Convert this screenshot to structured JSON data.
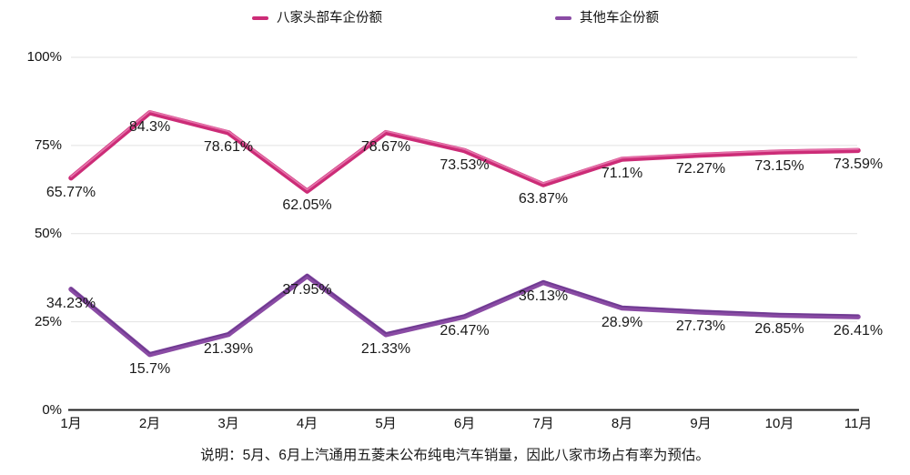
{
  "legend": {
    "items": [
      {
        "label": "八家头部车企份额",
        "color": "#CC2C77"
      },
      {
        "label": "其他车企份额",
        "color": "#8A4BA4"
      }
    ]
  },
  "chart_data": {
    "type": "line",
    "title": "",
    "xlabel": "",
    "ylabel": "",
    "categories": [
      "1月",
      "2月",
      "3月",
      "4月",
      "5月",
      "6月",
      "7月",
      "8月",
      "9月",
      "10月",
      "11月"
    ],
    "series": [
      {
        "name": "八家头部车企份额",
        "color": "#CC2C77",
        "highlight_color": "#E87AAF",
        "values": [
          65.77,
          84.3,
          78.61,
          62.05,
          78.67,
          73.53,
          63.87,
          71.1,
          72.27,
          73.15,
          73.59
        ],
        "labels": [
          "65.77%",
          "84.3%",
          "78.61%",
          "62.05%",
          "78.67%",
          "73.53%",
          "63.87%",
          "71.1%",
          "72.27%",
          "73.15%",
          "73.59%"
        ]
      },
      {
        "name": "其他车企份额",
        "color": "#8A4BA4",
        "highlight_color": "#6B3A90",
        "values": [
          34.23,
          15.7,
          21.39,
          37.95,
          21.33,
          26.47,
          36.13,
          28.9,
          27.73,
          26.85,
          26.41
        ],
        "labels": [
          "34.23%",
          "15.7%",
          "21.39%",
          "37.95%",
          "21.33%",
          "26.47%",
          "36.13%",
          "28.9%",
          "27.73%",
          "26.85%",
          "26.41%"
        ]
      }
    ],
    "yticks": [
      {
        "label": "0%",
        "value": 0
      },
      {
        "label": "25%",
        "value": 25
      },
      {
        "label": "50%",
        "value": 50
      },
      {
        "label": "75%",
        "value": 75
      },
      {
        "label": "100%",
        "value": 100
      }
    ],
    "ylim": [
      0,
      100
    ],
    "grid": true,
    "legend_position": "top",
    "grid_color": "#e2e2e2",
    "axis_color": "#1f1f1f"
  },
  "note": "说明：5月、6月上汽通用五菱未公布纯电汽车销量，因此八家市场占有率为预估。"
}
